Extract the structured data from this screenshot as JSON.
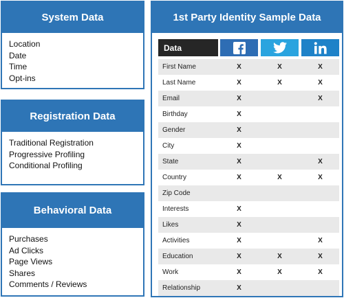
{
  "system": {
    "title": "System Data",
    "items": [
      "Location",
      "Date",
      "Time",
      "Opt-ins"
    ]
  },
  "registration": {
    "title": "Registration Data",
    "items": [
      "Traditional Registration",
      "Progressive Profiling",
      "Conditional Profiling"
    ]
  },
  "behavioral": {
    "title": "Behavioral Data",
    "items": [
      "Purchases",
      "Ad Clicks",
      "Page Views",
      "Shares",
      "Comments / Reviews"
    ]
  },
  "identity": {
    "title": "1st Party Identity Sample Data",
    "header_label": "Data",
    "icons": {
      "facebook": "facebook-icon",
      "twitter": "twitter-icon",
      "linkedin": "linkedin-icon"
    },
    "colors": {
      "brand_blue": "#2e75b6",
      "facebook": "#2e6db4",
      "twitter": "#2aa4df",
      "linkedin": "#1e82c8"
    },
    "rows": [
      {
        "label": "First Name",
        "fb": "X",
        "tw": "X",
        "in": "X"
      },
      {
        "label": "Last Name",
        "fb": "X",
        "tw": "X",
        "in": "X"
      },
      {
        "label": "Email",
        "fb": "X",
        "tw": "",
        "in": "X"
      },
      {
        "label": "Birthday",
        "fb": "X",
        "tw": "",
        "in": ""
      },
      {
        "label": "Gender",
        "fb": "X",
        "tw": "",
        "in": ""
      },
      {
        "label": "City",
        "fb": "X",
        "tw": "",
        "in": ""
      },
      {
        "label": "State",
        "fb": "X",
        "tw": "",
        "in": "X"
      },
      {
        "label": "Country",
        "fb": "X",
        "tw": "X",
        "in": "X"
      },
      {
        "label": "Zip Code",
        "fb": "",
        "tw": "",
        "in": ""
      },
      {
        "label": "Interests",
        "fb": "X",
        "tw": "",
        "in": ""
      },
      {
        "label": "Likes",
        "fb": "X",
        "tw": "",
        "in": ""
      },
      {
        "label": "Activities",
        "fb": "X",
        "tw": "",
        "in": "X"
      },
      {
        "label": "Education",
        "fb": "X",
        "tw": "X",
        "in": "X"
      },
      {
        "label": "Work",
        "fb": "X",
        "tw": "X",
        "in": "X"
      },
      {
        "label": "Relationship",
        "fb": "X",
        "tw": "",
        "in": ""
      }
    ]
  }
}
